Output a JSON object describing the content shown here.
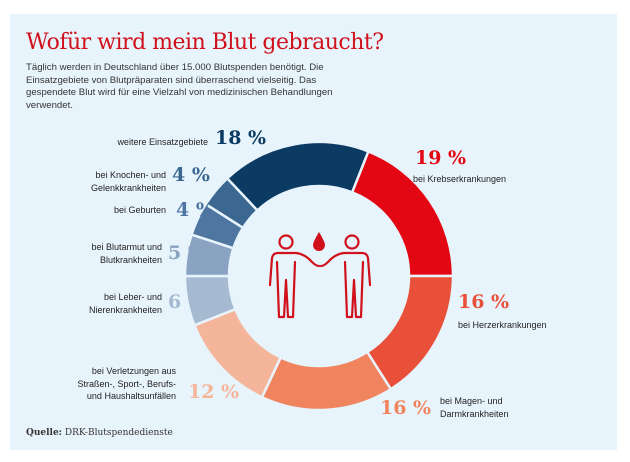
{
  "title": "Wofür wird mein Blut gebraucht?",
  "intro": "Täglich werden in Deutschland über 15.000 Blutspenden benötigt. Die Einsatzgebiete von Blutpräparaten sind überraschend vielseitig. Das gespendete Blut wird für eine Vielzahl von medizinischen Behandlungen verwendet.",
  "source_label": "Quelle:",
  "source": "DRK-Blutspendedienste",
  "icon": "two-people-blood-drop-icon",
  "chart_data": {
    "type": "donut",
    "unit": "%",
    "slices": [
      {
        "label": "bei Krebserkrankungen",
        "value": 19,
        "display": "19 %",
        "color": "#e30613"
      },
      {
        "label": "bei Herzerkrankungen",
        "value": 16,
        "display": "16 %",
        "color": "#e8503a"
      },
      {
        "label": "bei Magen- und Darmkrankheiten",
        "value": 16,
        "display": "16 %",
        "color": "#f0845f"
      },
      {
        "label": "bei Verletzungen aus Straßen-, Sport-, Berufs- und Haushaltsunfällen",
        "value": 12,
        "display": "12 %",
        "color": "#f5b59a"
      },
      {
        "label": "bei Leber- und Nierenkrankheiten",
        "value": 6,
        "display": "6 %",
        "color": "#a5b9d1"
      },
      {
        "label": "bei Blutarmut und Blutkrankheiten",
        "value": 5,
        "display": "5 %",
        "color": "#8aa3c3"
      },
      {
        "label": "bei Geburten",
        "value": 4,
        "display": "4 %",
        "color": "#4f76a1"
      },
      {
        "label": "bei Knochen- und Gelenkkrankheiten",
        "value": 4,
        "display": "4 %",
        "color": "#3b6791"
      },
      {
        "label": "weitere Einsatzgebiete",
        "value": 18,
        "display": "18 %",
        "color": "#0b3a63"
      }
    ]
  }
}
